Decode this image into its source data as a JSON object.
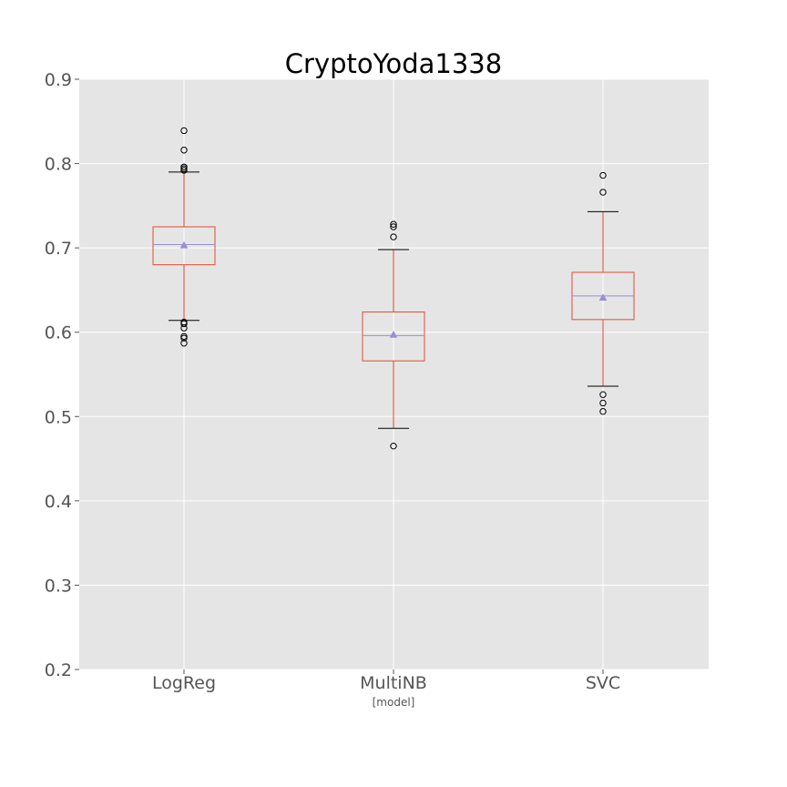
{
  "chart_data": {
    "type": "box",
    "title": "CryptoYoda1338",
    "xlabel": "[model]",
    "ylabel": "",
    "ylim": [
      0.2,
      0.9
    ],
    "yticks": [
      0.2,
      0.3,
      0.4,
      0.5,
      0.6,
      0.7,
      0.8,
      0.9
    ],
    "ytick_labels": [
      "0.2",
      "0.3",
      "0.4",
      "0.5",
      "0.6",
      "0.7",
      "0.8",
      "0.9"
    ],
    "grid": true,
    "categories": [
      "LogReg",
      "MultiNB",
      "SVC"
    ],
    "boxes": [
      {
        "label": "LogReg",
        "whisker_low": 0.614,
        "q1": 0.68,
        "median": 0.704,
        "q3": 0.725,
        "whisker_high": 0.79,
        "mean": 0.703,
        "outliers": [
          0.839,
          0.816,
          0.796,
          0.794,
          0.792,
          0.612,
          0.61,
          0.605,
          0.595,
          0.593,
          0.587
        ]
      },
      {
        "label": "MultiNB",
        "whisker_low": 0.486,
        "q1": 0.566,
        "median": 0.596,
        "q3": 0.624,
        "whisker_high": 0.698,
        "mean": 0.597,
        "outliers": [
          0.728,
          0.725,
          0.713,
          0.465
        ]
      },
      {
        "label": "SVC",
        "whisker_low": 0.536,
        "q1": 0.615,
        "median": 0.643,
        "q3": 0.671,
        "whisker_high": 0.743,
        "mean": 0.641,
        "outliers": [
          0.786,
          0.766,
          0.526,
          0.516,
          0.506
        ]
      }
    ],
    "colors": {
      "plot_background": "#e5e5e5",
      "grid": "#ffffff",
      "box": "#e24a33",
      "median": "#988ed5",
      "mean_marker": "#988ed5",
      "whisker_cap": "#000000",
      "outlier": "#000000",
      "tick_text": "#555555",
      "title_text": "#000000"
    }
  }
}
